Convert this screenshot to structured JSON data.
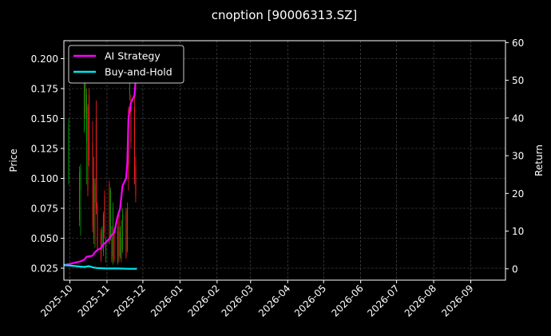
{
  "chart_data": {
    "type": "line",
    "title": "cnoption [90006313.SZ]",
    "xlabel": "",
    "ylabel": "Price",
    "y2label": "Return",
    "grid": true,
    "legend_position": "top-left",
    "x_ticks": [
      "2025-10",
      "2025-11",
      "2025-12",
      "2026-01",
      "2026-02",
      "2026-03",
      "2026-04",
      "2026-05",
      "2026-06",
      "2026-07",
      "2026-08",
      "2026-09"
    ],
    "y_ticks": [
      "0.025",
      "0.050",
      "0.075",
      "0.100",
      "0.125",
      "0.150",
      "0.175",
      "0.200"
    ],
    "y2_ticks": [
      "0",
      "10",
      "20",
      "30",
      "40",
      "50",
      "60"
    ],
    "xlim": [
      "2025-09-26",
      "2026-09-30"
    ],
    "ylim": [
      0.015,
      0.215
    ],
    "y2lim": [
      -3,
      60.5
    ],
    "colors": {
      "ai": "#ff00ff",
      "bh": "#00e5ee",
      "up": "#ff2020",
      "down": "#00a000",
      "grid": "#555555"
    },
    "series": [
      {
        "name": "AI Strategy",
        "axis": "right",
        "x": [
          "2025-09-26",
          "2025-10-01",
          "2025-10-06",
          "2025-10-10",
          "2025-10-13",
          "2025-10-15",
          "2025-10-17",
          "2025-10-20",
          "2025-10-22",
          "2025-10-24",
          "2025-10-27",
          "2025-10-29",
          "2025-10-31",
          "2025-11-03",
          "2025-11-05",
          "2025-11-07",
          "2025-11-10",
          "2025-11-12",
          "2025-11-14",
          "2025-11-17",
          "2025-11-18",
          "2025-11-19",
          "2025-11-20",
          "2025-11-21",
          "2025-11-24",
          "2025-11-25",
          "2025-11-26"
        ],
        "values": [
          1,
          1.3,
          1.7,
          2,
          2.4,
          3.2,
          3.3,
          3.5,
          4.4,
          5,
          5.5,
          6.5,
          7,
          8,
          9,
          9.5,
          14,
          16,
          22,
          24,
          28,
          40,
          42,
          44,
          46,
          50,
          56
        ]
      },
      {
        "name": "Buy-and-Hold",
        "axis": "right",
        "x": [
          "2025-09-26",
          "2025-10-03",
          "2025-10-09",
          "2025-10-13",
          "2025-10-17",
          "2025-10-20",
          "2025-10-24",
          "2025-11-01",
          "2025-11-10",
          "2025-11-20",
          "2025-11-26"
        ],
        "values": [
          1,
          0.8,
          0.6,
          0.5,
          0.7,
          0.4,
          0.2,
          0.1,
          0.1,
          0,
          0
        ]
      }
    ],
    "candles": [
      {
        "date": "2025-09-26",
        "open": 0.14,
        "high": 0.145,
        "low": 0.1,
        "close": 0.105
      },
      {
        "date": "2025-09-30",
        "open": 0.1,
        "high": 0.15,
        "low": 0.095,
        "close": 0.145
      },
      {
        "date": "2025-10-09",
        "open": 0.105,
        "high": 0.11,
        "low": 0.06,
        "close": 0.065
      },
      {
        "date": "2025-10-10",
        "open": 0.09,
        "high": 0.112,
        "low": 0.052,
        "close": 0.108
      },
      {
        "date": "2025-10-13",
        "open": 0.14,
        "high": 0.2,
        "low": 0.138,
        "close": 0.195
      },
      {
        "date": "2025-10-14",
        "open": 0.18,
        "high": 0.195,
        "low": 0.15,
        "close": 0.155
      },
      {
        "date": "2025-10-15",
        "open": 0.13,
        "high": 0.175,
        "low": 0.095,
        "close": 0.17
      },
      {
        "date": "2025-10-16",
        "open": 0.16,
        "high": 0.162,
        "low": 0.085,
        "close": 0.09
      },
      {
        "date": "2025-10-17",
        "open": 0.17,
        "high": 0.175,
        "low": 0.11,
        "close": 0.115
      },
      {
        "date": "2025-10-20",
        "open": 0.13,
        "high": 0.148,
        "low": 0.055,
        "close": 0.06
      },
      {
        "date": "2025-10-21",
        "open": 0.1,
        "high": 0.118,
        "low": 0.045,
        "close": 0.05
      },
      {
        "date": "2025-10-22",
        "open": 0.08,
        "high": 0.1,
        "low": 0.042,
        "close": 0.095
      },
      {
        "date": "2025-10-23",
        "open": 0.15,
        "high": 0.165,
        "low": 0.07,
        "close": 0.075
      },
      {
        "date": "2025-10-24",
        "open": 0.078,
        "high": 0.08,
        "low": 0.04,
        "close": 0.042
      },
      {
        "date": "2025-10-27",
        "open": 0.055,
        "high": 0.058,
        "low": 0.03,
        "close": 0.032
      },
      {
        "date": "2025-10-28",
        "open": 0.045,
        "high": 0.06,
        "low": 0.04,
        "close": 0.057
      },
      {
        "date": "2025-10-29",
        "open": 0.07,
        "high": 0.072,
        "low": 0.035,
        "close": 0.038
      },
      {
        "date": "2025-10-30",
        "open": 0.085,
        "high": 0.09,
        "low": 0.05,
        "close": 0.055
      },
      {
        "date": "2025-10-31",
        "open": 0.04,
        "high": 0.05,
        "low": 0.03,
        "close": 0.048
      },
      {
        "date": "2025-11-03",
        "open": 0.095,
        "high": 0.098,
        "low": 0.045,
        "close": 0.05
      },
      {
        "date": "2025-11-04",
        "open": 0.05,
        "high": 0.092,
        "low": 0.048,
        "close": 0.09
      },
      {
        "date": "2025-11-05",
        "open": 0.05,
        "high": 0.06,
        "low": 0.03,
        "close": 0.032
      },
      {
        "date": "2025-11-06",
        "open": 0.035,
        "high": 0.08,
        "low": 0.028,
        "close": 0.075
      },
      {
        "date": "2025-11-07",
        "open": 0.055,
        "high": 0.058,
        "low": 0.03,
        "close": 0.032
      },
      {
        "date": "2025-11-10",
        "open": 0.03,
        "high": 0.06,
        "low": 0.028,
        "close": 0.056
      },
      {
        "date": "2025-11-11",
        "open": 0.065,
        "high": 0.07,
        "low": 0.03,
        "close": 0.035
      },
      {
        "date": "2025-11-12",
        "open": 0.035,
        "high": 0.06,
        "low": 0.033,
        "close": 0.055
      },
      {
        "date": "2025-11-13",
        "open": 0.05,
        "high": 0.065,
        "low": 0.03,
        "close": 0.033
      },
      {
        "date": "2025-11-14",
        "open": 0.04,
        "high": 0.075,
        "low": 0.038,
        "close": 0.07
      },
      {
        "date": "2025-11-17",
        "open": 0.072,
        "high": 0.075,
        "low": 0.033,
        "close": 0.035
      },
      {
        "date": "2025-11-18",
        "open": 0.04,
        "high": 0.08,
        "low": 0.038,
        "close": 0.075
      },
      {
        "date": "2025-11-19",
        "open": 0.14,
        "high": 0.16,
        "low": 0.09,
        "close": 0.1
      },
      {
        "date": "2025-11-20",
        "open": 0.17,
        "high": 0.205,
        "low": 0.165,
        "close": 0.2
      },
      {
        "date": "2025-11-21",
        "open": 0.16,
        "high": 0.17,
        "low": 0.125,
        "close": 0.13
      },
      {
        "date": "2025-11-24",
        "open": 0.16,
        "high": 0.175,
        "low": 0.095,
        "close": 0.1
      },
      {
        "date": "2025-11-25",
        "open": 0.11,
        "high": 0.118,
        "low": 0.08,
        "close": 0.085
      }
    ]
  }
}
